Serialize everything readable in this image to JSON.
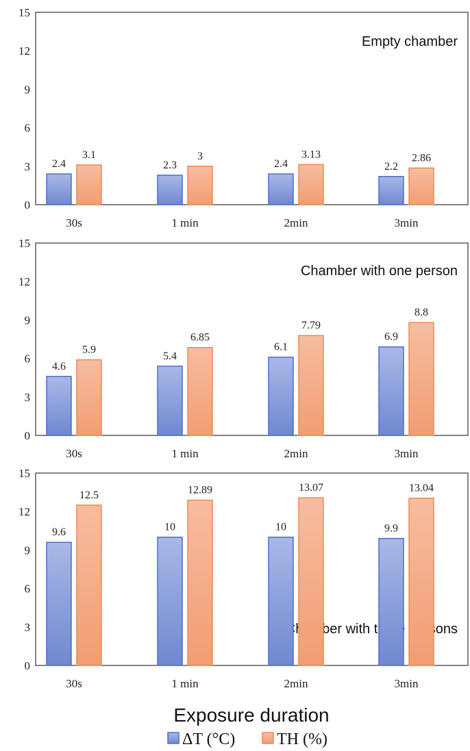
{
  "chart_data": {
    "type": "bar",
    "xlabel": "Exposure duration",
    "legend": {
      "placement": "bottom",
      "items": [
        {
          "name": "ΔT (°C)",
          "color": "#7f96d6",
          "border": "#4a6ec9"
        },
        {
          "name": "TH (%)",
          "color": "#f5a882",
          "border": "#ee8a4f"
        }
      ]
    },
    "panels": [
      {
        "title": "Empty chamber",
        "categories": [
          "30s",
          "1 min",
          "2min",
          "3min"
        ],
        "ylim": [
          0,
          15
        ],
        "yticks": [
          "0",
          "3",
          "6",
          "9",
          "12",
          "15"
        ],
        "series": [
          {
            "name": "ΔT (°C)",
            "values": [
              2.4,
              2.3,
              2.4,
              2.2
            ],
            "labels": [
              "2.4",
              "2.3",
              "2.4",
              "2.2"
            ]
          },
          {
            "name": "TH (%)",
            "values": [
              3.1,
              3,
              3.13,
              2.86
            ],
            "labels": [
              "3.1",
              "3",
              "3.13",
              "2.86"
            ]
          }
        ]
      },
      {
        "title": "Chamber with one person",
        "categories": [
          "30s",
          "1 min",
          "2min",
          "3min"
        ],
        "ylim": [
          0,
          15
        ],
        "yticks": [
          "0",
          "3",
          "6",
          "9",
          "12",
          "15"
        ],
        "series": [
          {
            "name": "ΔT (°C)",
            "values": [
              4.6,
              5.4,
              6.1,
              6.9
            ],
            "labels": [
              "4.6",
              "5.4",
              "6.1",
              "6.9"
            ]
          },
          {
            "name": "TH (%)",
            "values": [
              5.9,
              6.85,
              7.79,
              8.8
            ],
            "labels": [
              "5.9",
              "6.85",
              "7.79",
              "8.8"
            ]
          }
        ]
      },
      {
        "title": "Chamber with three persons",
        "categories": [
          "30s",
          "1 min",
          "2min",
          "3min"
        ],
        "ylim": [
          0,
          15
        ],
        "yticks": [
          "0",
          "3",
          "6",
          "9",
          "12",
          "15"
        ],
        "series": [
          {
            "name": "ΔT (°C)",
            "values": [
              9.6,
              10,
              10,
              9.9
            ],
            "labels": [
              "9.6",
              "10",
              "10",
              "9.9"
            ]
          },
          {
            "name": "TH (%)",
            "values": [
              12.5,
              12.89,
              13.07,
              13.04
            ],
            "labels": [
              "12.5",
              "12.89",
              "13.07",
              "13.04"
            ]
          }
        ]
      }
    ]
  }
}
